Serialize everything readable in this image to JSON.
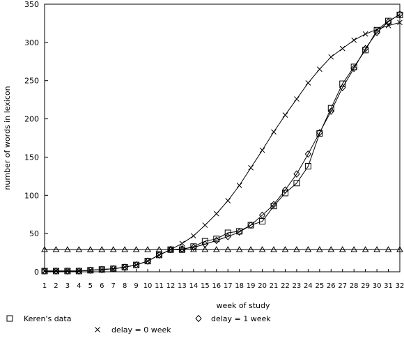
{
  "chart_data": {
    "type": "line",
    "xlabel": "week of study",
    "ylabel": "number of words in lexicon",
    "xlim": [
      1,
      32
    ],
    "ylim": [
      0,
      350
    ],
    "x_ticks": [
      1,
      2,
      3,
      4,
      5,
      6,
      7,
      8,
      9,
      10,
      11,
      12,
      13,
      14,
      15,
      16,
      17,
      18,
      19,
      20,
      21,
      22,
      23,
      24,
      25,
      26,
      27,
      28,
      29,
      30,
      31,
      32
    ],
    "y_ticks": [
      0,
      50,
      100,
      150,
      200,
      250,
      300,
      350
    ],
    "grid": false,
    "legend_placement": "bottom",
    "x": [
      1,
      2,
      3,
      4,
      5,
      6,
      7,
      8,
      9,
      10,
      11,
      12,
      13,
      14,
      15,
      16,
      17,
      18,
      19,
      20,
      21,
      22,
      23,
      24,
      25,
      26,
      27,
      28,
      29,
      30,
      31,
      32
    ],
    "series": [
      {
        "name": "Keren's data",
        "marker": "square",
        "values": [
          1,
          1,
          1,
          1,
          2,
          3,
          4,
          6,
          9,
          14,
          22,
          29,
          29,
          33,
          40,
          43,
          51,
          53,
          61,
          66,
          86,
          103,
          116,
          138,
          181,
          214,
          246,
          268,
          290,
          316,
          328,
          336
        ]
      },
      {
        "name": "delay = 1 week",
        "marker": "diamond",
        "values": [
          1,
          1,
          1,
          1,
          2,
          3,
          4,
          6,
          9,
          14,
          22,
          29,
          30,
          32,
          36,
          41,
          46,
          52,
          61,
          74,
          88,
          107,
          128,
          154,
          182,
          210,
          241,
          266,
          292,
          313,
          327,
          337
        ]
      },
      {
        "name": "delay = 0 week",
        "marker": "x",
        "values": [
          1,
          1,
          1,
          1,
          2,
          3,
          4,
          6,
          9,
          14,
          22,
          29,
          37,
          47,
          61,
          76,
          93,
          113,
          136,
          159,
          183,
          205,
          226,
          247,
          265,
          281,
          292,
          303,
          311,
          317,
          322,
          326
        ]
      },
      {
        "name": "",
        "marker": "triangle",
        "values": [
          29,
          29,
          29,
          29,
          29,
          29,
          29,
          29,
          29,
          29,
          29,
          29,
          29,
          29,
          29,
          29,
          29,
          29,
          29,
          29,
          29,
          29,
          29,
          29,
          29,
          29,
          29,
          29,
          29,
          29,
          29,
          29
        ]
      }
    ]
  }
}
